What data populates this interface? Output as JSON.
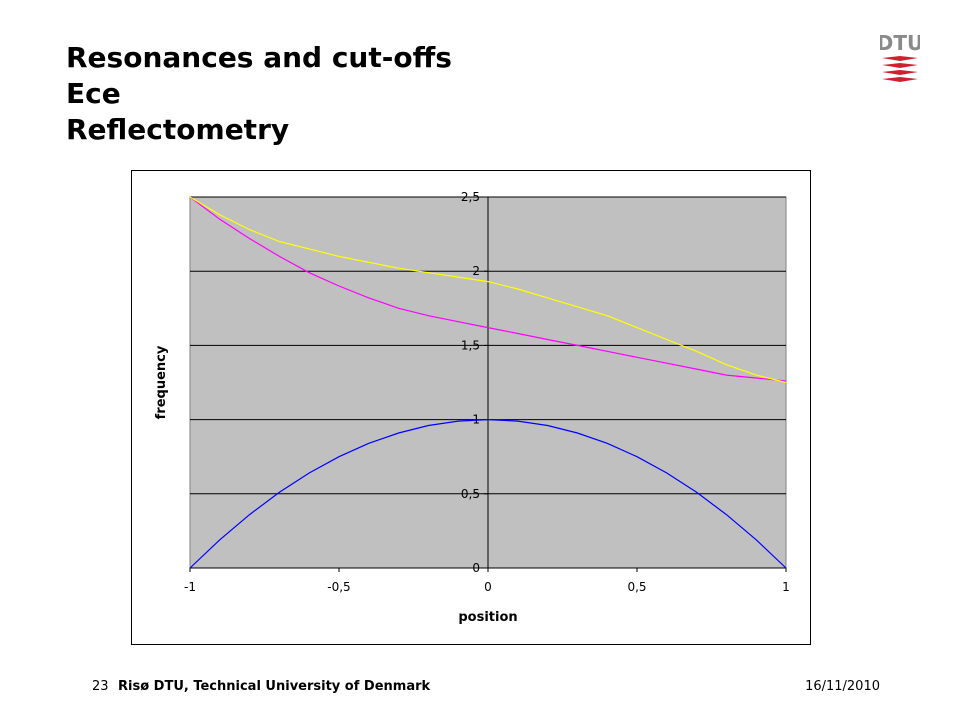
{
  "title": {
    "lines": [
      "Resonances and cut-offs",
      "Ece",
      "Reflectometry"
    ]
  },
  "logo": {
    "text": "DTU",
    "icon": "dtu-logo-icon",
    "color": "#d0202f"
  },
  "footer": {
    "page_number": "23",
    "organization": "Risø DTU, Technical University of Denmark",
    "date": "16/11/2010"
  },
  "chart_data": {
    "type": "line",
    "title": "",
    "xlabel": "position",
    "ylabel": "frequency",
    "xlim": [
      -1,
      1
    ],
    "ylim": [
      0,
      2.5
    ],
    "x_ticks": [
      -1,
      -0.5,
      0,
      0.5,
      1
    ],
    "x_tick_labels": [
      "-1",
      "-0,5",
      "0",
      "0,5",
      "1"
    ],
    "y_ticks": [
      0,
      0.5,
      1,
      1.5,
      2,
      2.5
    ],
    "y_tick_labels": [
      "0",
      "0,5",
      "1",
      "1,5",
      "2",
      "2,5"
    ],
    "grid": "horizontal",
    "plot_background": "#c0c0c0",
    "x": [
      -1,
      -0.9,
      -0.8,
      -0.7,
      -0.6,
      -0.5,
      -0.4,
      -0.3,
      -0.2,
      -0.1,
      0,
      0.1,
      0.2,
      0.3,
      0.4,
      0.5,
      0.6,
      0.7,
      0.8,
      0.9,
      1
    ],
    "series": [
      {
        "color": "#0000ff",
        "values": [
          0,
          0.19,
          0.36,
          0.51,
          0.64,
          0.75,
          0.84,
          0.91,
          0.96,
          0.99,
          1,
          0.99,
          0.96,
          0.91,
          0.84,
          0.75,
          0.64,
          0.51,
          0.36,
          0.19,
          0
        ]
      },
      {
        "color": "#ff00ff",
        "values": [
          2.5,
          2.35,
          2.22,
          2.1,
          1.99,
          1.9,
          1.82,
          1.75,
          1.7,
          1.66,
          1.62,
          1.58,
          1.54,
          1.5,
          1.46,
          1.42,
          1.38,
          1.34,
          1.3,
          1.28,
          1.26
        ]
      },
      {
        "color": "#ffff00",
        "values": [
          2.5,
          2.38,
          2.28,
          2.2,
          2.15,
          2.1,
          2.06,
          2.02,
          1.99,
          1.96,
          1.93,
          1.88,
          1.82,
          1.76,
          1.7,
          1.62,
          1.54,
          1.46,
          1.37,
          1.3,
          1.25
        ]
      }
    ]
  }
}
